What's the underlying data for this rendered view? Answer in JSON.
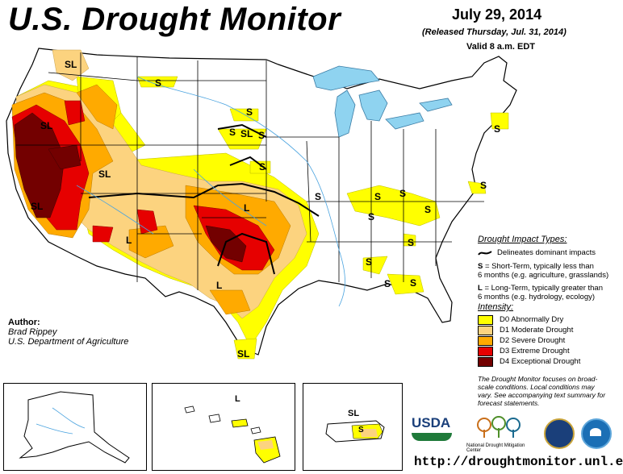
{
  "header": {
    "title": "U.S. Drought Monitor",
    "date": "July 29, 2014",
    "released": "(Released Thursday, Jul. 31, 2014)",
    "valid": "Valid 8 a.m. EDT"
  },
  "map_labels": {
    "sl": "SL",
    "s": "S",
    "l": "L"
  },
  "legend": {
    "impact_heading": "Drought Impact Types:",
    "delineates": "Delineates dominant impacts",
    "short_term_key": "S",
    "short_term_line1": "= Short-Term, typically less than",
    "short_term_line2": "6 months (e.g. agriculture, grasslands)",
    "long_term_key": "L",
    "long_term_line1": "= Long-Term, typically greater than",
    "long_term_line2": "6 months (e.g. hydrology, ecology)",
    "intensity_heading": "Intensity:",
    "intensity": [
      {
        "label": "D0 Abnormally Dry",
        "color": "#ffff00"
      },
      {
        "label": "D1 Moderate Drought",
        "color": "#fcd37f"
      },
      {
        "label": "D2 Severe Drought",
        "color": "#ffaa00"
      },
      {
        "label": "D3 Extreme Drought",
        "color": "#e60000"
      },
      {
        "label": "D4 Exceptional Drought",
        "color": "#730000"
      }
    ],
    "note_line1": "The Drought Monitor focuses on broad-",
    "note_line2": "scale conditions. Local conditions may",
    "note_line3": "vary. See accompanying text summary for",
    "note_line4": "forecast statements."
  },
  "author": {
    "heading": "Author:",
    "name": "Brad Rippey",
    "org": "U.S. Department of Agriculture"
  },
  "logos": {
    "usda": "USDA",
    "ndmc": "National Drought Mitigation Center"
  },
  "url": "http://droughtmonitor.unl.edu/",
  "colors": {
    "water": "#8fd3f0",
    "border": "#000000",
    "rivers": "#4aa3df"
  }
}
